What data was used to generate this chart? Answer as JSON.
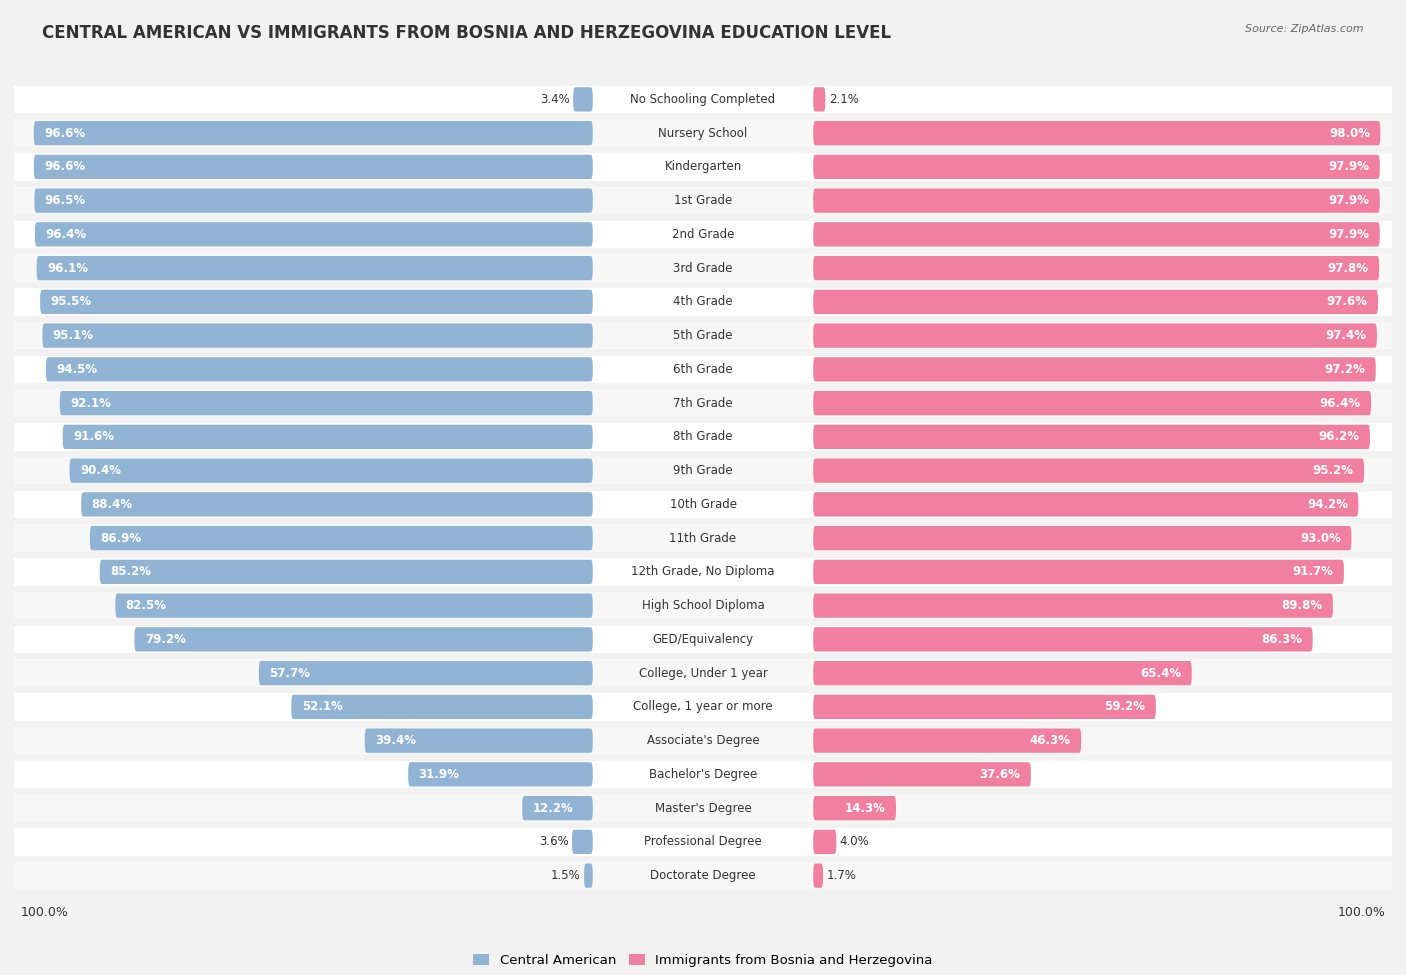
{
  "title": "CENTRAL AMERICAN VS IMMIGRANTS FROM BOSNIA AND HERZEGOVINA EDUCATION LEVEL",
  "source": "Source: ZipAtlas.com",
  "categories": [
    "No Schooling Completed",
    "Nursery School",
    "Kindergarten",
    "1st Grade",
    "2nd Grade",
    "3rd Grade",
    "4th Grade",
    "5th Grade",
    "6th Grade",
    "7th Grade",
    "8th Grade",
    "9th Grade",
    "10th Grade",
    "11th Grade",
    "12th Grade, No Diploma",
    "High School Diploma",
    "GED/Equivalency",
    "College, Under 1 year",
    "College, 1 year or more",
    "Associate's Degree",
    "Bachelor's Degree",
    "Master's Degree",
    "Professional Degree",
    "Doctorate Degree"
  ],
  "central_american": [
    3.4,
    96.6,
    96.6,
    96.5,
    96.4,
    96.1,
    95.5,
    95.1,
    94.5,
    92.1,
    91.6,
    90.4,
    88.4,
    86.9,
    85.2,
    82.5,
    79.2,
    57.7,
    52.1,
    39.4,
    31.9,
    12.2,
    3.6,
    1.5
  ],
  "bosnia": [
    2.1,
    98.0,
    97.9,
    97.9,
    97.9,
    97.8,
    97.6,
    97.4,
    97.2,
    96.4,
    96.2,
    95.2,
    94.2,
    93.0,
    91.7,
    89.8,
    86.3,
    65.4,
    59.2,
    46.3,
    37.6,
    14.3,
    4.0,
    1.7
  ],
  "blue_color": "#91b4d5",
  "pink_color": "#f07fa0",
  "bg_color": "#f2f2f2",
  "row_white": "#ffffff",
  "row_light": "#f7f7f7",
  "title_fontsize": 12,
  "label_fontsize": 8.5,
  "value_fontsize": 8.5,
  "legend_fontsize": 9.5,
  "legend_left": "Central American",
  "legend_right": "Immigrants from Bosnia and Herzegovina"
}
